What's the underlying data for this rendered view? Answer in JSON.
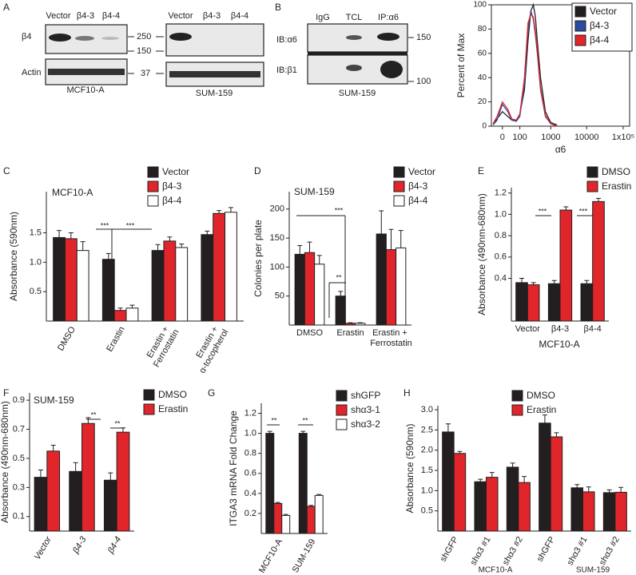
{
  "panel_labels": [
    "A",
    "B",
    "C",
    "D",
    "E",
    "F",
    "G",
    "H"
  ],
  "blots": {
    "a_left": {
      "lanes": [
        "Vector",
        "β4-3",
        "β4-4"
      ],
      "rows": [
        "β4",
        "Actin"
      ],
      "markers": [
        250,
        150,
        37
      ],
      "caption": "MCF10-A"
    },
    "a_right": {
      "lanes": [
        "Vector",
        "β4-3",
        "β4-4"
      ],
      "caption": "SUM-159"
    },
    "b": {
      "lanes": [
        "IgG",
        "TCL",
        "IP:α6"
      ],
      "rows": [
        "IB:α6",
        "IB:β1"
      ],
      "markers": [
        150,
        100
      ],
      "caption": "SUM-159"
    }
  },
  "chart_data": [
    {
      "type": "line",
      "ylabel": "Percent of Max",
      "xlabel": "α6",
      "xscale": "symlog",
      "legend": "upper right",
      "x": [
        -40,
        -20,
        0,
        20,
        40,
        70,
        100,
        150,
        200,
        250,
        300,
        350,
        400,
        500,
        700,
        1000,
        1500
      ],
      "series": [
        {
          "name": "Vector",
          "color": "#231f20",
          "values": [
            2,
            6,
            12,
            8,
            5,
            5,
            10,
            30,
            70,
            95,
            100,
            90,
            70,
            40,
            12,
            3,
            1
          ]
        },
        {
          "name": "β4-3",
          "color": "#2a4aa0",
          "values": [
            1,
            5,
            18,
            12,
            5,
            4,
            8,
            35,
            80,
            95,
            88,
            75,
            60,
            30,
            8,
            2,
            0
          ]
        },
        {
          "name": "β4-4",
          "color": "#e0262b",
          "values": [
            2,
            8,
            20,
            14,
            6,
            5,
            10,
            40,
            85,
            92,
            90,
            78,
            62,
            32,
            9,
            2,
            0
          ]
        }
      ],
      "xlim": [
        -50,
        150000
      ],
      "ylim": [
        0,
        100
      ],
      "xticks": [
        0,
        100,
        1000,
        10000,
        {
          "value": 100000,
          "label": "1x10⁵"
        }
      ],
      "yticks": [
        0,
        20,
        40,
        60,
        80,
        100
      ]
    },
    {
      "type": "bar",
      "title": "MCF10-A",
      "ylabel": "Absorbance (590nm)",
      "categories": [
        "DMSO",
        "Erastin",
        "Erastin + Ferrostatin",
        "Erastin + α-tocopherol"
      ],
      "series": [
        {
          "name": "Vector",
          "color": "#231f20",
          "values": [
            1.42,
            1.05,
            1.2,
            1.47
          ],
          "errors": [
            0.12,
            0.1,
            0.1,
            0.06
          ]
        },
        {
          "name": "β4-3",
          "color": "#e0262b",
          "values": [
            1.4,
            0.18,
            1.36,
            1.83
          ],
          "errors": [
            0.1,
            0.04,
            0.07,
            0.05
          ]
        },
        {
          "name": "β4-4",
          "color": "#ffffff",
          "values": [
            1.2,
            0.22,
            1.25,
            1.85
          ],
          "errors": [
            0.15,
            0.05,
            0.06,
            0.08
          ]
        }
      ],
      "ylim": [
        0,
        2.2
      ],
      "yticks": [
        0.5,
        {
          "value": 1,
          "label": "1.0"
        },
        1.5
      ],
      "annotations": [
        "***",
        "***"
      ]
    },
    {
      "type": "bar",
      "title": "SUM-159",
      "ylabel": "Colonies per plate",
      "categories": [
        "DMSO",
        "Erastin",
        "Erastin + Ferrostatin"
      ],
      "series": [
        {
          "name": "Vector",
          "color": "#231f20",
          "values": [
            122,
            50,
            157
          ],
          "errors": [
            15,
            8,
            40
          ]
        },
        {
          "name": "β4-3",
          "color": "#e0262b",
          "values": [
            125,
            3,
            130
          ],
          "errors": [
            18,
            1,
            35
          ]
        },
        {
          "name": "β4-4",
          "color": "#ffffff",
          "values": [
            105,
            3,
            133
          ],
          "errors": [
            15,
            1,
            30
          ]
        }
      ],
      "ylim": [
        0,
        230
      ],
      "yticks": [
        50,
        100,
        150,
        200
      ],
      "annotations": [
        "***",
        "**"
      ]
    },
    {
      "type": "bar",
      "ylabel": "Absorbance (490nm-680nm)",
      "xlabel": "MCF10-A",
      "categories": [
        "Vector",
        "β4-3",
        "β4-4"
      ],
      "series": [
        {
          "name": "DMSO",
          "color": "#231f20",
          "values": [
            0.36,
            0.35,
            0.35
          ],
          "errors": [
            0.04,
            0.03,
            0.03
          ]
        },
        {
          "name": "Erastin",
          "color": "#e0262b",
          "values": [
            0.34,
            1.04,
            1.12
          ],
          "errors": [
            0.02,
            0.03,
            0.03
          ]
        }
      ],
      "ylim": [
        0,
        1.25
      ],
      "yticks": [
        0.4,
        0.6,
        0.8,
        {
          "value": 1,
          "label": "1.0"
        },
        1.2
      ],
      "annotations": [
        "***",
        "***"
      ]
    },
    {
      "type": "bar",
      "title": "SUM-159",
      "ylabel": "Absorbance (490nm-680nm)",
      "categories": [
        "Vector",
        "β4-3",
        "β4-4"
      ],
      "series": [
        {
          "name": "DMSO",
          "color": "#231f20",
          "values": [
            0.37,
            0.41,
            0.35
          ],
          "errors": [
            0.05,
            0.06,
            0.05
          ]
        },
        {
          "name": "Erastin",
          "color": "#e0262b",
          "values": [
            0.55,
            0.74,
            0.68
          ],
          "errors": [
            0.04,
            0.04,
            0.03
          ]
        }
      ],
      "ylim": [
        0,
        0.95
      ],
      "yticks": [
        0.1,
        0.3,
        0.5,
        0.7,
        0.9
      ],
      "annotations": [
        "**",
        "**"
      ]
    },
    {
      "type": "bar",
      "ylabel": "ITGA3 mRNA Fold Change",
      "categories": [
        "MCF10-A",
        "SUM-159"
      ],
      "series": [
        {
          "name": "shGFP",
          "color": "#231f20",
          "values": [
            1.0,
            1.0
          ],
          "errors": [
            0.02,
            0.02
          ]
        },
        {
          "name": "shα3-1",
          "color": "#e0262b",
          "values": [
            0.3,
            0.27
          ],
          "errors": [
            0.01,
            0.01
          ]
        },
        {
          "name": "shα3-2",
          "color": "#ffffff",
          "values": [
            0.18,
            0.38
          ],
          "errors": [
            0.01,
            0.01
          ]
        }
      ],
      "ylim": [
        0,
        1.3
      ],
      "yticks": [
        0.2,
        0.4,
        0.6,
        0.8,
        {
          "value": 1,
          "label": "1.0"
        },
        1.2
      ],
      "annotations": [
        "**",
        "**"
      ]
    },
    {
      "type": "bar",
      "ylabel": "Absorbance (590nm)",
      "groups": [
        "MCF10-A",
        "SUM-159"
      ],
      "categories": [
        "shGFP",
        "shα3 #1",
        "shα3 #2",
        "shGFP",
        "shα3 #1",
        "shα3 #2"
      ],
      "series": [
        {
          "name": "DMSO",
          "color": "#231f20",
          "values": [
            2.45,
            1.22,
            1.58,
            2.67,
            1.07,
            0.95
          ],
          "errors": [
            0.2,
            0.06,
            0.1,
            0.2,
            0.08,
            0.07
          ]
        },
        {
          "name": "Erastin",
          "color": "#e0262b",
          "values": [
            1.92,
            1.33,
            1.2,
            2.33,
            0.97,
            0.96
          ],
          "errors": [
            0.05,
            0.12,
            0.15,
            0.1,
            0.12,
            0.12
          ]
        }
      ],
      "ylim": [
        0,
        3.1
      ],
      "yticks": [
        0.5,
        {
          "value": 1,
          "label": "1.0"
        },
        1.5,
        {
          "value": 2,
          "label": "2.0"
        },
        2.5,
        {
          "value": 3,
          "label": "3.0"
        }
      ]
    }
  ]
}
